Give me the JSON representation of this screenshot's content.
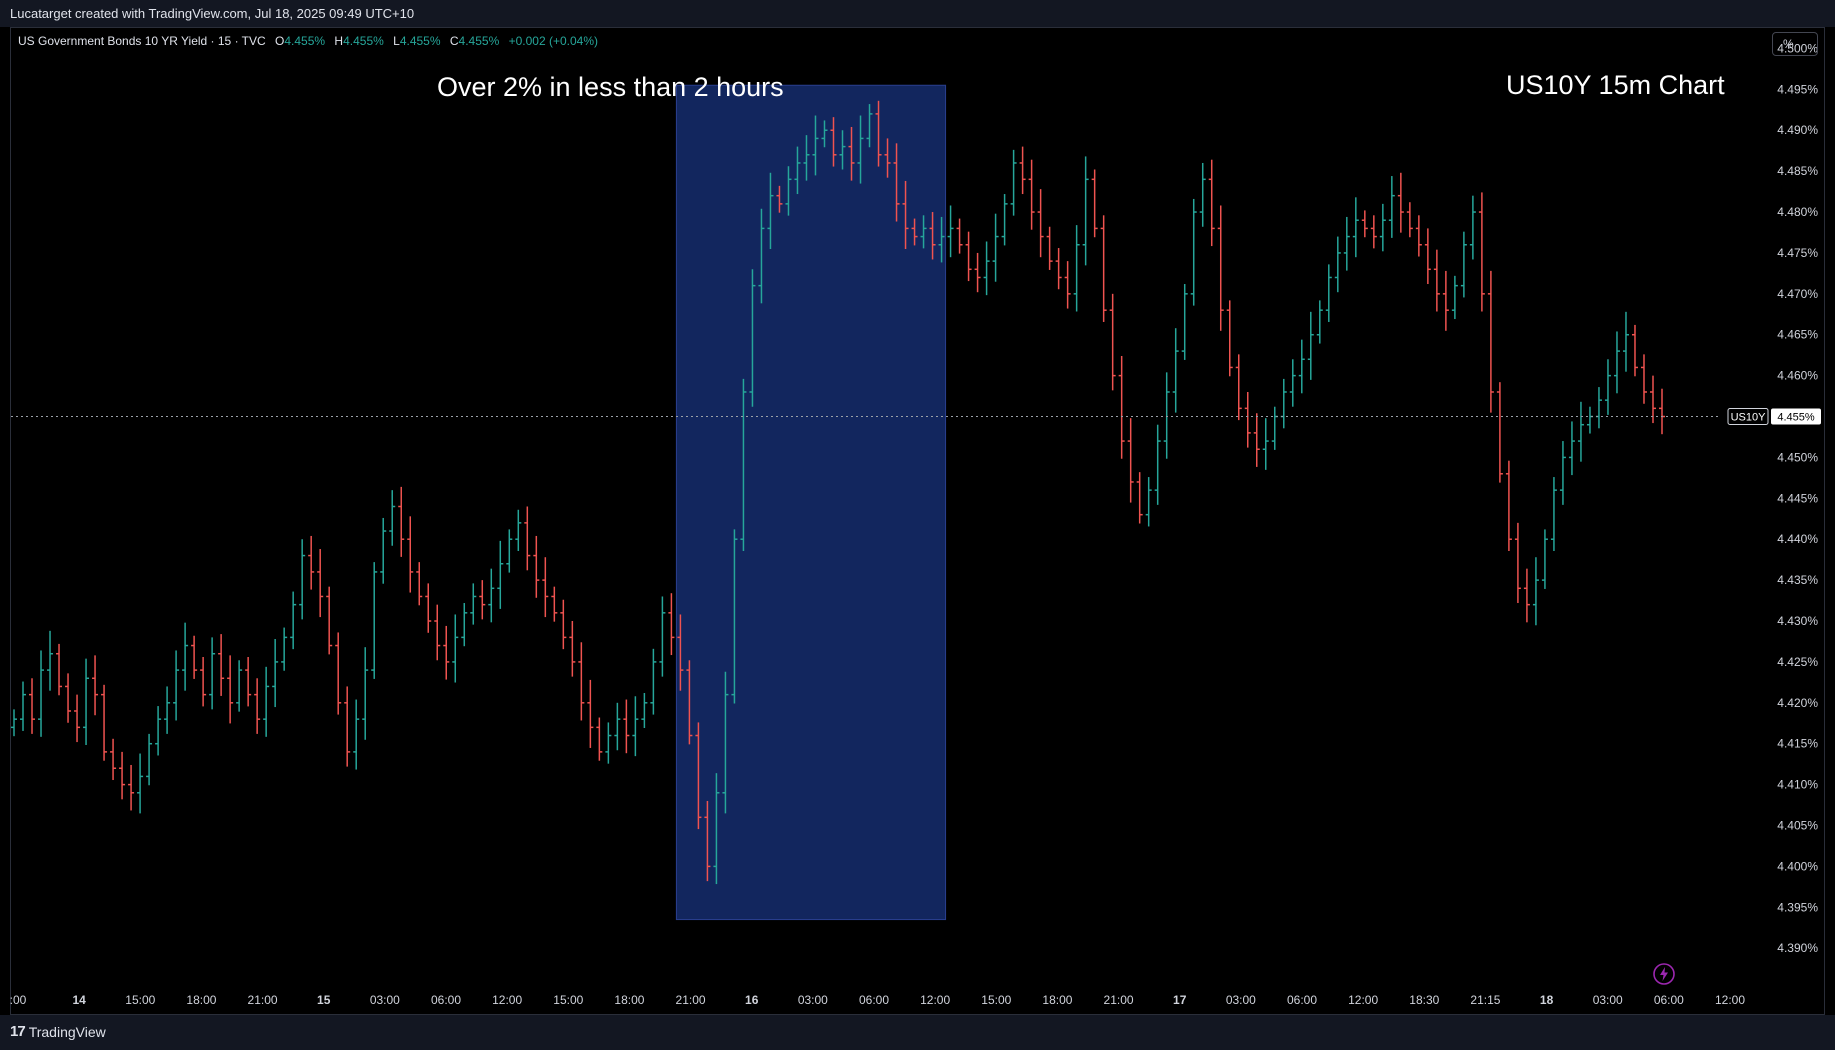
{
  "header": {
    "attribution": "Lucatarget created with TradingView.com, Jul 18, 2025 09:49 UTC+10"
  },
  "legend": {
    "symbol": "US Government Bonds 10 YR Yield · 15 · TVC",
    "o_label": "O",
    "o_value": "4.455%",
    "h_label": "H",
    "h_value": "4.455%",
    "l_label": "L",
    "l_value": "4.455%",
    "c_label": "C",
    "c_value": "4.455%",
    "change": "+0.002 (+0.04%)"
  },
  "annotations": {
    "highlight_text": "Over 2% in less than 2 hours",
    "chart_title": "US10Y 15m Chart"
  },
  "toolbar": {
    "percent_label": "%"
  },
  "footer": {
    "brand": "TradingView"
  },
  "colors": {
    "up": "#26a69a",
    "down": "#ef5350",
    "highlight": "#12265e",
    "background": "#000000"
  },
  "icons": {
    "lightning": "lightning-icon",
    "logo": "tradingview-logo-icon"
  },
  "chart_data": {
    "type": "ohlc",
    "symbol": "US10Y",
    "interval": "15",
    "ylim": [
      4.3855,
      4.5025
    ],
    "y_ticks": [
      "4.500%",
      "4.495%",
      "4.490%",
      "4.485%",
      "4.480%",
      "4.475%",
      "4.470%",
      "4.465%",
      "4.460%",
      "4.455%",
      "4.450%",
      "4.445%",
      "4.440%",
      "4.435%",
      "4.430%",
      "4.425%",
      "4.420%",
      "4.415%",
      "4.410%",
      "4.405%",
      "4.400%",
      "4.395%",
      "4.390%"
    ],
    "x_ticks": [
      ":00",
      "14",
      "15:00",
      "18:00",
      "21:00",
      "15",
      "03:00",
      "06:00",
      "12:00",
      "15:00",
      "18:00",
      "21:00",
      "16",
      "03:00",
      "06:00",
      "12:00",
      "15:00",
      "18:00",
      "21:00",
      "17",
      "03:00",
      "06:00",
      "12:00",
      "18:30",
      "21:15",
      "18",
      "03:00",
      "06:00",
      "12:00"
    ],
    "last_price": {
      "symbol_label": "US10Y",
      "value": 4.455,
      "value_label": "4.455%"
    },
    "highlight": {
      "from_close": 4.424,
      "to_close": 4.49,
      "description": "rally window"
    },
    "closes": [
      4.418,
      4.421,
      4.418,
      4.424,
      4.426,
      4.422,
      4.419,
      4.417,
      4.423,
      4.421,
      4.414,
      4.412,
      4.41,
      4.409,
      4.411,
      4.415,
      4.418,
      4.42,
      4.424,
      4.427,
      4.424,
      4.421,
      4.426,
      4.423,
      4.42,
      4.424,
      4.421,
      4.418,
      4.422,
      4.425,
      4.428,
      4.432,
      4.438,
      4.436,
      4.433,
      4.427,
      4.42,
      4.414,
      4.418,
      4.424,
      4.436,
      4.441,
      4.444,
      4.44,
      4.436,
      4.433,
      4.43,
      4.427,
      4.425,
      4.428,
      4.431,
      4.433,
      4.432,
      4.434,
      4.437,
      4.44,
      4.442,
      4.438,
      4.435,
      4.433,
      4.431,
      4.428,
      4.425,
      4.42,
      4.417,
      4.414,
      4.416,
      4.418,
      4.416,
      4.418,
      4.42,
      4.425,
      4.431,
      4.428,
      4.424,
      4.416,
      4.406,
      4.4,
      4.409,
      4.421,
      4.44,
      4.458,
      4.471,
      4.478,
      4.482,
      4.481,
      4.484,
      4.486,
      4.487,
      4.489,
      4.49,
      4.487,
      4.488,
      4.486,
      4.489,
      4.492,
      4.487,
      4.486,
      4.481,
      4.478,
      4.477,
      4.478,
      4.476,
      4.477,
      4.478,
      4.476,
      4.473,
      4.472,
      4.474,
      4.477,
      4.481,
      4.486,
      4.484,
      4.48,
      4.477,
      4.474,
      4.472,
      4.47,
      4.476,
      4.484,
      4.478,
      4.468,
      4.46,
      4.452,
      4.447,
      4.443,
      4.446,
      4.452,
      4.458,
      4.463,
      4.47,
      4.48,
      4.484,
      4.478,
      4.468,
      4.461,
      4.456,
      4.453,
      4.451,
      4.452,
      4.455,
      4.458,
      4.46,
      4.462,
      4.465,
      4.468,
      4.472,
      4.475,
      4.477,
      4.479,
      4.478,
      4.477,
      4.479,
      4.482,
      4.48,
      4.478,
      4.476,
      4.473,
      4.47,
      4.468,
      4.471,
      4.476,
      4.48,
      4.47,
      4.458,
      4.448,
      4.44,
      4.434,
      4.432,
      4.435,
      4.44,
      4.446,
      4.45,
      4.452,
      4.454,
      4.455,
      4.457,
      4.46,
      4.463,
      4.465,
      4.461,
      4.458,
      4.456,
      4.455
    ]
  }
}
